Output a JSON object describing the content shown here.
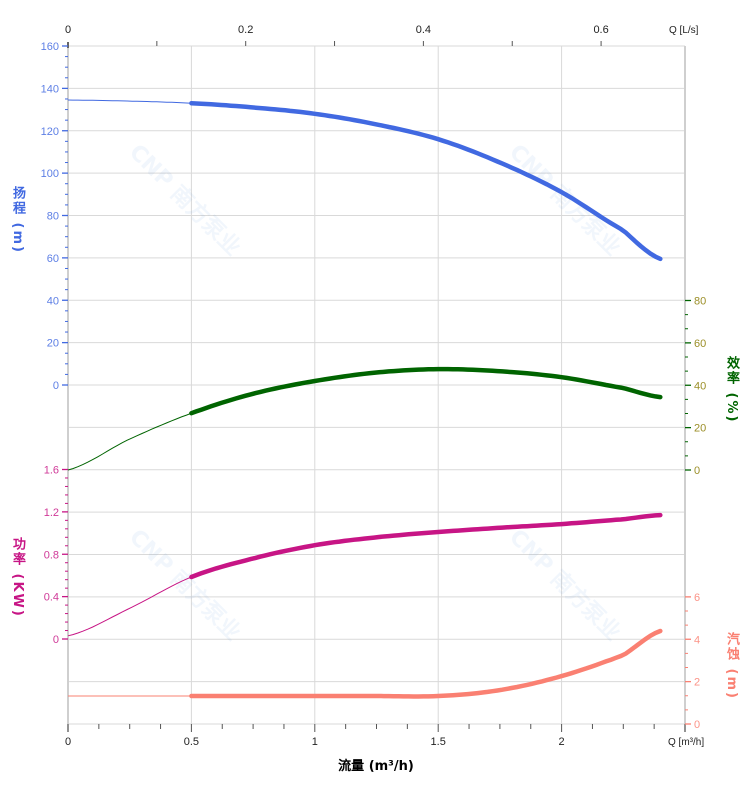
{
  "chart_data": {
    "type": "line",
    "watermark": "CNP 南方泵业",
    "xlabel": "流量 (m³/h)",
    "x_unit_label": "Q [m³/h]",
    "xlim": [
      0,
      2.5
    ],
    "x_ticks": [
      "0",
      "0.5",
      "1",
      "1.5",
      "2"
    ],
    "top_axis": {
      "unit_label": "Q [L/s]",
      "ticks": [
        "0",
        "0.2",
        "0.4",
        "0.6"
      ]
    },
    "grid": true,
    "axes": {
      "head": {
        "label": "扬程 (m)",
        "ylim": [
          -20,
          160
        ],
        "ticks": [
          "0",
          "20",
          "40",
          "60",
          "80",
          "100",
          "120",
          "140",
          "160"
        ],
        "color": "#4169e1",
        "side": "left"
      },
      "efficiency": {
        "label": "效率 (%)",
        "ylim": [
          0,
          80
        ],
        "ticks": [
          "0",
          "20",
          "40",
          "60",
          "80"
        ],
        "color": "#006400",
        "side": "right"
      },
      "power": {
        "label": "功率 (KW)",
        "ylim": [
          0,
          1.6
        ],
        "ticks": [
          "0",
          "0.4",
          "0.8",
          "1.2",
          "1.6"
        ],
        "color": "#c71585",
        "side": "left"
      },
      "npsh": {
        "label": "汽蚀 (m)",
        "ylim": [
          0,
          6
        ],
        "ticks": [
          "0",
          "2",
          "4",
          "6"
        ],
        "color": "#fa8072",
        "side": "right"
      }
    },
    "x": [
      0,
      0.25,
      0.5,
      0.75,
      1,
      1.25,
      1.5,
      1.75,
      2,
      2.25,
      2.4
    ],
    "operating_range_start": 0.5,
    "series": [
      {
        "axis": "head",
        "color": "#4169e1",
        "values": [
          134.5,
          134,
          133,
          131,
          128,
          123,
          116,
          105,
          91,
          73,
          59.5
        ]
      },
      {
        "axis": "efficiency",
        "color": "#006400",
        "values": [
          0,
          14.6,
          26.8,
          36,
          42,
          46,
          47.6,
          46.6,
          43.8,
          38.7,
          34.4
        ]
      },
      {
        "axis": "power",
        "color": "#c71585",
        "values": [
          0.03,
          0.29,
          0.585,
          0.76,
          0.885,
          0.96,
          1.01,
          1.05,
          1.085,
          1.13,
          1.17
        ]
      },
      {
        "axis": "npsh",
        "color": "#fa8072",
        "values": [
          1.32,
          1.32,
          1.32,
          1.32,
          1.32,
          1.32,
          1.32,
          1.6,
          2.26,
          3.25,
          4.39
        ]
      }
    ]
  }
}
